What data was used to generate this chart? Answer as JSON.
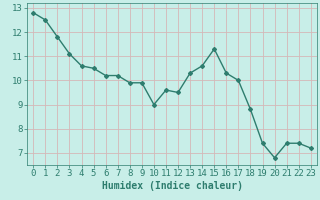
{
  "x": [
    0,
    1,
    2,
    3,
    4,
    5,
    6,
    7,
    8,
    9,
    10,
    11,
    12,
    13,
    14,
    15,
    16,
    17,
    18,
    19,
    20,
    21,
    22,
    23
  ],
  "y": [
    12.8,
    12.5,
    11.8,
    11.1,
    10.6,
    10.5,
    10.2,
    10.2,
    9.9,
    9.9,
    9.0,
    9.6,
    9.5,
    10.3,
    10.6,
    11.3,
    10.3,
    10.0,
    8.8,
    7.4,
    6.8,
    7.4,
    7.4,
    7.2
  ],
  "line_color": "#2e7d6e",
  "marker": "D",
  "marker_size": 2.0,
  "line_width": 1.0,
  "background_color": "#c8eee8",
  "grid_color": "#d4b8b8",
  "xlabel": "Humidex (Indice chaleur)",
  "xlim": [
    -0.5,
    23.5
  ],
  "ylim": [
    6.5,
    13.2
  ],
  "yticks": [
    7,
    8,
    9,
    10,
    11,
    12,
    13
  ],
  "xticks": [
    0,
    1,
    2,
    3,
    4,
    5,
    6,
    7,
    8,
    9,
    10,
    11,
    12,
    13,
    14,
    15,
    16,
    17,
    18,
    19,
    20,
    21,
    22,
    23
  ],
  "tick_color": "#2e7d6e",
  "label_color": "#2e7d6e",
  "xlabel_fontsize": 7,
  "tick_fontsize": 6.5
}
